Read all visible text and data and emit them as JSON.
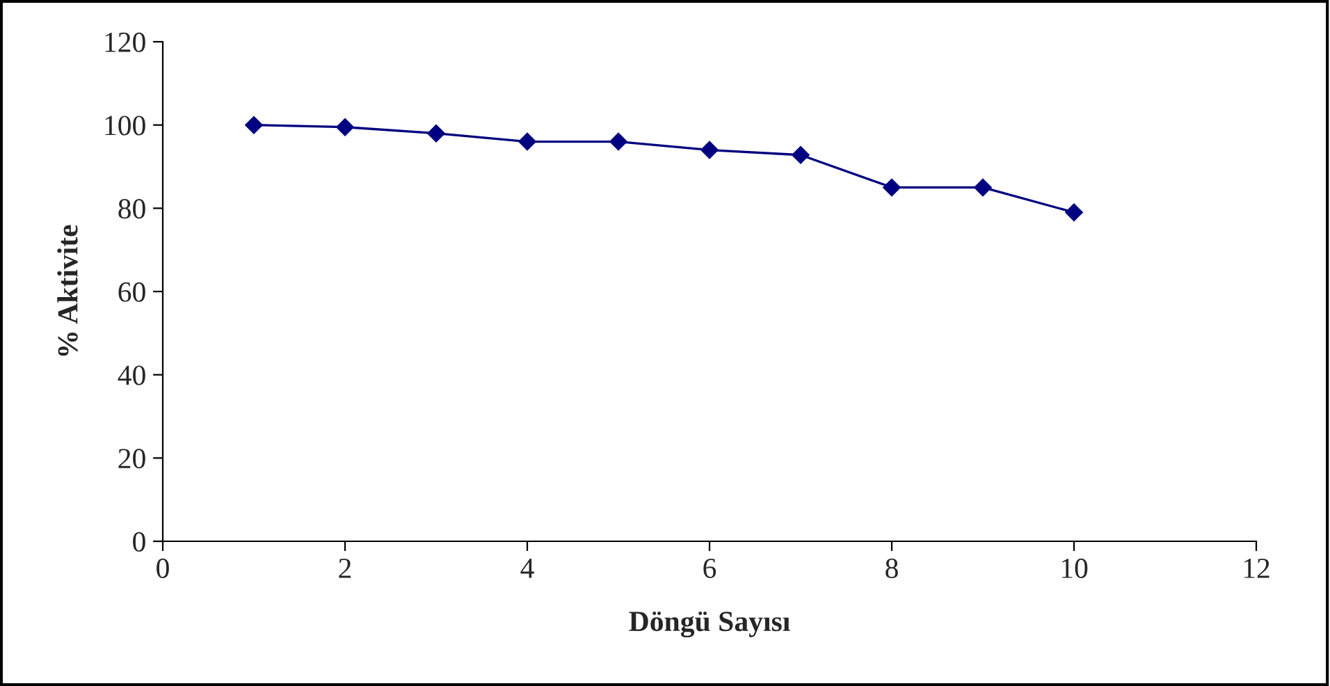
{
  "chart_data": {
    "type": "line",
    "xlabel": "Döngü Sayısı",
    "ylabel": "% Aktivite",
    "x": [
      1,
      2,
      3,
      4,
      5,
      6,
      7,
      8,
      9,
      10
    ],
    "series": [
      {
        "color": "#000080",
        "values": [
          100,
          99.5,
          98,
          96,
          96,
          94,
          92.8,
          85,
          85,
          79
        ]
      }
    ],
    "xlim": [
      0,
      12
    ],
    "xticks": [
      0,
      2,
      4,
      6,
      8,
      10,
      12
    ],
    "ylim": [
      0,
      120
    ],
    "yticks": [
      0,
      20,
      40,
      60,
      80,
      100,
      120
    ],
    "marker": "diamond",
    "line_style": "solid",
    "grid": false
  }
}
